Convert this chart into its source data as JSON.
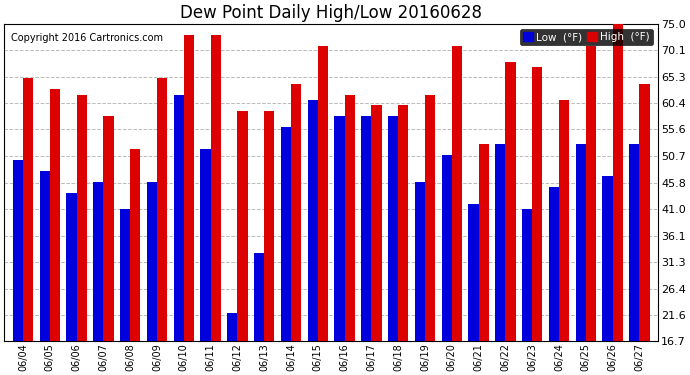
{
  "title": "Dew Point Daily High/Low 20160628",
  "copyright": "Copyright 2016 Cartronics.com",
  "dates": [
    "06/04",
    "06/05",
    "06/06",
    "06/07",
    "06/08",
    "06/09",
    "06/10",
    "06/11",
    "06/12",
    "06/13",
    "06/14",
    "06/15",
    "06/16",
    "06/17",
    "06/18",
    "06/19",
    "06/20",
    "06/21",
    "06/22",
    "06/23",
    "06/24",
    "06/25",
    "06/26",
    "06/27"
  ],
  "low": [
    50.0,
    48.0,
    44.0,
    46.0,
    41.0,
    46.0,
    62.0,
    52.0,
    22.0,
    33.0,
    56.0,
    61.0,
    58.0,
    58.0,
    58.0,
    46.0,
    51.0,
    42.0,
    53.0,
    41.0,
    45.0,
    53.0,
    47.0,
    53.0
  ],
  "high": [
    65.0,
    63.0,
    62.0,
    58.0,
    52.0,
    65.0,
    73.0,
    73.0,
    59.0,
    59.0,
    64.0,
    71.0,
    62.0,
    60.0,
    60.0,
    62.0,
    71.0,
    53.0,
    68.0,
    67.0,
    61.0,
    71.0,
    75.0,
    64.0
  ],
  "yticks": [
    16.7,
    21.6,
    26.4,
    31.3,
    36.1,
    41.0,
    45.8,
    50.7,
    55.6,
    60.4,
    65.3,
    70.1,
    75.0
  ],
  "ymin": 16.7,
  "ymax": 75.0,
  "low_color": "#0000dd",
  "high_color": "#dd0000",
  "bg_color": "#ffffff",
  "plot_bg_color": "#ffffff",
  "grid_color": "#bbbbbb",
  "legend_low_label": "Low  (°F)",
  "legend_high_label": "High  (°F)",
  "bar_width": 0.38
}
